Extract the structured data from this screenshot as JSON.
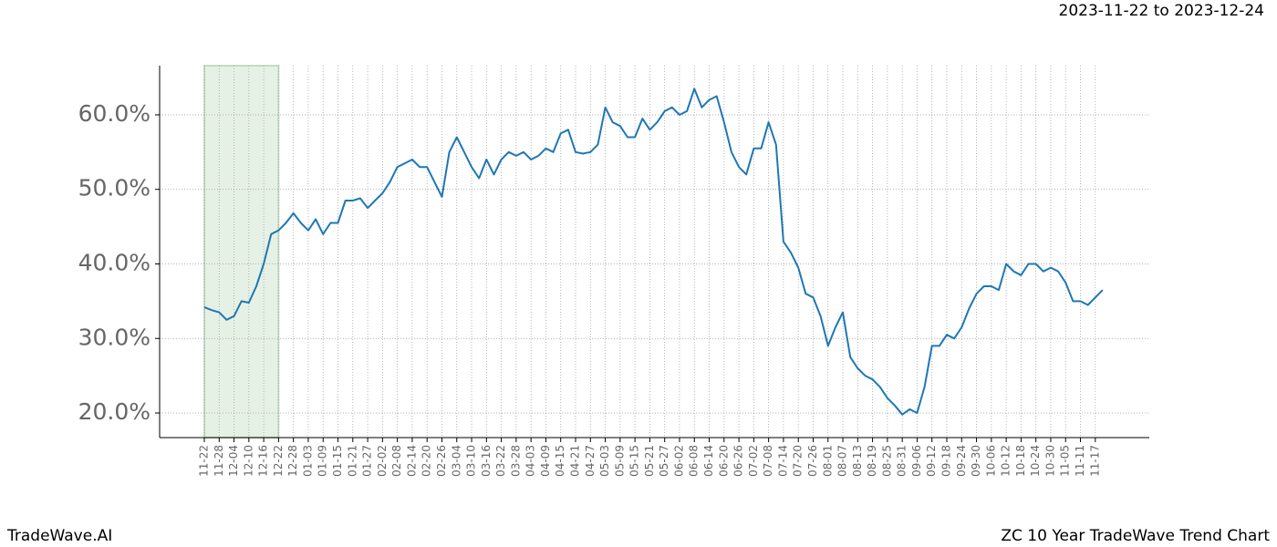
{
  "chart_data": {
    "type": "line",
    "title": "ZC 10 Year TradeWave Trend Chart",
    "date_range": "2023-11-22 to 2023-12-24",
    "brand": "TradeWave.AI",
    "categories": [
      "11-22",
      null,
      "11-28",
      null,
      "12-04",
      null,
      "12-10",
      null,
      "12-16",
      null,
      "12-22",
      null,
      "12-28",
      null,
      "01-03",
      null,
      "01-09",
      null,
      "01-15",
      null,
      "01-21",
      null,
      "01-27",
      null,
      "02-02",
      null,
      "02-08",
      null,
      "02-14",
      null,
      "02-20",
      null,
      "02-26",
      null,
      "03-04",
      null,
      "03-10",
      null,
      "03-16",
      null,
      "03-22",
      null,
      "03-28",
      null,
      "04-03",
      null,
      "04-09",
      null,
      "04-15",
      null,
      "04-21",
      null,
      "04-27",
      null,
      "05-03",
      null,
      "05-09",
      null,
      "05-15",
      null,
      "05-21",
      null,
      "05-27",
      null,
      "06-02",
      null,
      "06-08",
      null,
      "06-14",
      null,
      "06-20",
      null,
      "06-26",
      null,
      "07-02",
      null,
      "07-08",
      null,
      "07-14",
      null,
      "07-20",
      null,
      "07-26",
      null,
      "08-01",
      null,
      "08-07",
      null,
      "08-13",
      null,
      "08-19",
      null,
      "08-25",
      null,
      "08-31",
      null,
      "09-06",
      null,
      "09-12",
      null,
      "09-18",
      null,
      "09-24",
      null,
      "09-30",
      null,
      "10-06",
      null,
      "10-12",
      null,
      "10-18",
      null,
      "10-24",
      null,
      "10-30",
      null,
      "11-05",
      null,
      "11-11",
      null,
      "11-17",
      null
    ],
    "values": [
      34.2,
      33.8,
      33.5,
      32.5,
      33,
      35,
      34.8,
      37,
      40,
      44,
      44.5,
      45.5,
      46.8,
      45.5,
      44.5,
      46,
      44,
      45.5,
      45.5,
      48.5,
      48.5,
      48.8,
      47.5,
      48.5,
      49.5,
      51,
      53,
      53.5,
      54,
      53,
      53,
      51,
      49,
      55,
      57,
      55,
      53,
      51.5,
      54,
      52,
      54,
      55,
      54.5,
      55,
      54,
      54.5,
      55.5,
      55,
      57.5,
      58,
      55,
      54.8,
      55,
      56,
      61,
      59,
      58.5,
      57,
      57,
      59.5,
      58,
      59,
      60.5,
      61,
      60,
      60.5,
      63.5,
      61,
      62,
      62.5,
      59,
      55,
      53,
      52,
      55.5,
      55.5,
      59,
      56,
      43,
      41.5,
      39.5,
      36,
      35.5,
      33,
      29,
      31.5,
      33.5,
      27.5,
      26,
      25,
      24.5,
      23.5,
      22,
      21,
      19.8,
      20.5,
      20,
      23.5,
      29,
      29,
      30.5,
      30,
      31.5,
      34,
      36,
      37,
      37,
      36.5,
      40,
      39,
      38.5,
      40,
      40,
      39,
      39.5,
      39,
      37.5,
      35,
      35,
      34.5,
      35.5,
      36.5
    ],
    "color": "#1f77b4",
    "ylim": [
      16.7,
      66.6
    ],
    "yticks": [
      {
        "value": 20,
        "label": "20.0%"
      },
      {
        "value": 30,
        "label": "30.0%"
      },
      {
        "value": 40,
        "label": "40.0%"
      },
      {
        "value": 50,
        "label": "50.0%"
      },
      {
        "value": 60,
        "label": "60.0%"
      }
    ],
    "grid": true,
    "shade_from": "11-22",
    "shade_to": "12-22",
    "shade_color": "#2e8b2e"
  }
}
